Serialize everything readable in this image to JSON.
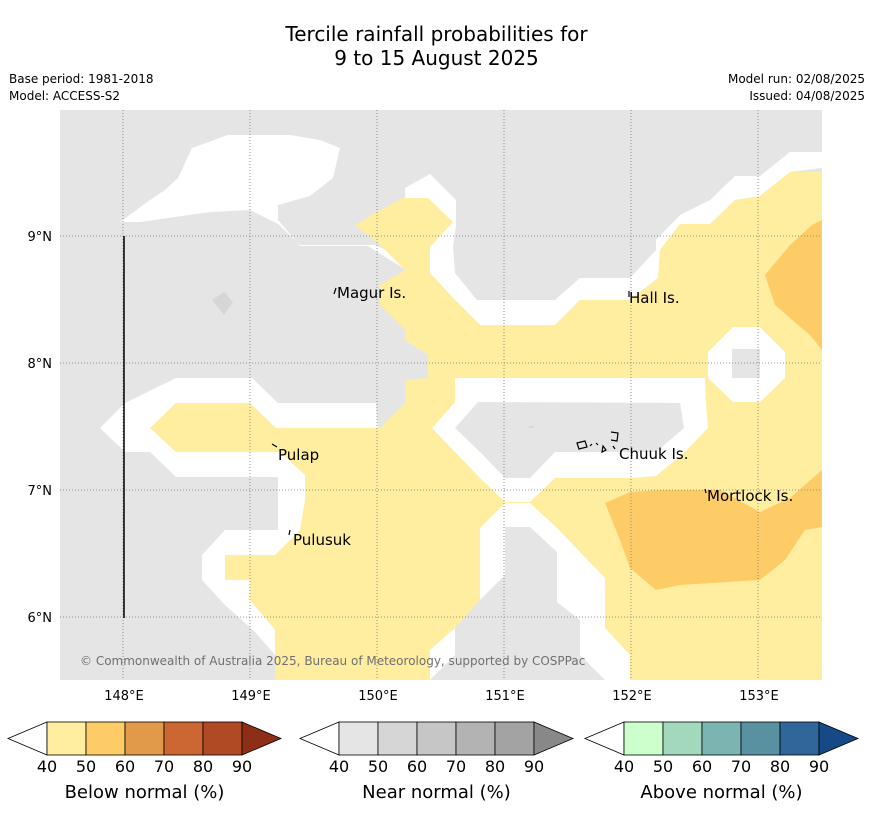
{
  "title_line1": "Tercile rainfall probabilities for",
  "title_line2": "9 to 15 August 2025",
  "base_period": "Base period: 1981-2018",
  "model": "Model: ACCESS-S2",
  "model_run": "Model run: 02/08/2025",
  "issued": "Issued: 04/08/2025",
  "copyright": "© Commonwealth of Australia 2025, Bureau of Meteorology, supported by COSPPac",
  "map": {
    "lon_ticks": [
      "148°E",
      "149°E",
      "150°E",
      "151°E",
      "152°E",
      "153°E"
    ],
    "lat_ticks": [
      "9°N",
      "8°N",
      "7°N",
      "6°N"
    ],
    "places": [
      {
        "name": "Magur Is."
      },
      {
        "name": "Hall Is."
      },
      {
        "name": "Pulap"
      },
      {
        "name": "Chuuk Is."
      },
      {
        "name": "Mortlock Is."
      },
      {
        "name": "Pulusuk"
      }
    ]
  },
  "colors": {
    "near_normal_fill": "#e5e5e5",
    "below_50": "#ffeda0",
    "below_60": "#fecc67",
    "gridline": "#777777"
  },
  "legends": [
    {
      "label": "Below normal (%)",
      "ticks": [
        "40",
        "50",
        "60",
        "70",
        "80",
        "90"
      ],
      "colors": [
        "#ffffff",
        "#ffeda0",
        "#fecc67",
        "#e09a4a",
        "#cc6632",
        "#b04a25",
        "#8e2e17"
      ]
    },
    {
      "label": "Near normal (%)",
      "ticks": [
        "40",
        "50",
        "60",
        "70",
        "80",
        "90"
      ],
      "colors": [
        "#ffffff",
        "#e5e5e5",
        "#d6d6d6",
        "#c6c6c6",
        "#b3b3b3",
        "#a3a3a3",
        "#888888"
      ]
    },
    {
      "label": "Above normal (%)",
      "ticks": [
        "40",
        "50",
        "60",
        "70",
        "80",
        "90"
      ],
      "colors": [
        "#ffffff",
        "#ccffcc",
        "#a2d9bc",
        "#7bb4b0",
        "#5991a0",
        "#30679a",
        "#164a86"
      ]
    }
  ]
}
